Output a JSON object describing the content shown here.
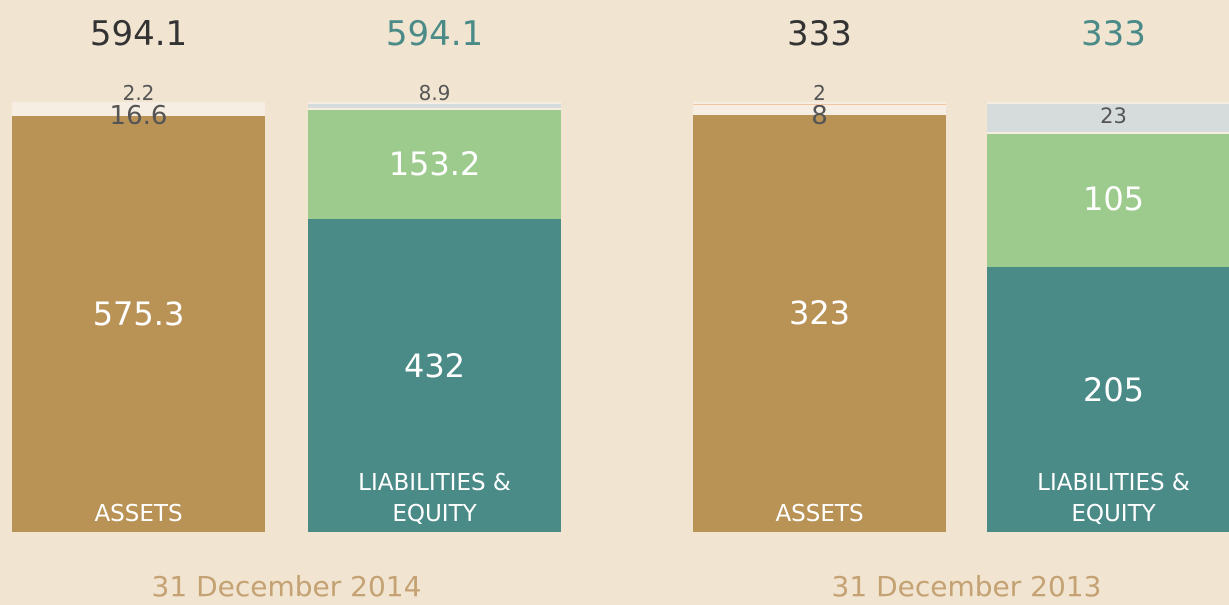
{
  "chart_data": {
    "type": "stacked_bar",
    "background": "#f1e5d2",
    "groups": [
      {
        "label": "31 December 2014",
        "bars": [
          {
            "name": "ASSETS",
            "total": 594.1,
            "total_color": "#333333",
            "segments": [
              {
                "value": 575.3,
                "color": "#b99256"
              },
              {
                "value": 16.6,
                "color": "#f6eee2"
              },
              {
                "value": 2.2,
                "color": "#f2c4a0"
              }
            ]
          },
          {
            "name": "LIABILITIES & EQUITY",
            "total": 594.1,
            "total_color": "#4a8a87",
            "segments": [
              {
                "value": 432,
                "color": "#4a8a87"
              },
              {
                "value": 153.2,
                "color": "#9dcb8d"
              },
              {
                "value": 8.9,
                "color": "#d6dcdb"
              }
            ]
          }
        ]
      },
      {
        "label": "31 December 2013",
        "bars": [
          {
            "name": "ASSETS",
            "total": 333,
            "total_color": "#333333",
            "segments": [
              {
                "value": 323,
                "color": "#b99256"
              },
              {
                "value": 8,
                "color": "#f6eee2"
              },
              {
                "value": 2,
                "color": "#f2c4a0"
              }
            ]
          },
          {
            "name": "LIABILITIES & EQUITY",
            "total": 333,
            "total_color": "#4a8a87",
            "segments": [
              {
                "value": 205,
                "color": "#4a8a87"
              },
              {
                "value": 105,
                "color": "#9dcb8d"
              },
              {
                "value": 23,
                "color": "#d6dcdb"
              }
            ]
          }
        ]
      }
    ]
  }
}
